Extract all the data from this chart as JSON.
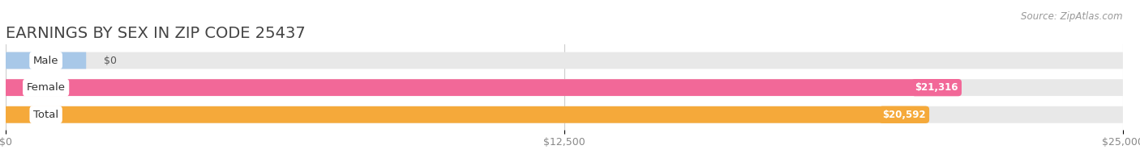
{
  "title": "EARNINGS BY SEX IN ZIP CODE 25437",
  "source": "Source: ZipAtlas.com",
  "categories": [
    "Male",
    "Female",
    "Total"
  ],
  "values": [
    0,
    21316,
    20592
  ],
  "bar_colors": [
    "#a8c8e8",
    "#f26898",
    "#f5a93a"
  ],
  "bar_bg_color": "#e8e8e8",
  "xlim": [
    0,
    25000
  ],
  "xticks": [
    0,
    12500,
    25000
  ],
  "xtick_labels": [
    "$0",
    "$12,500",
    "$25,000"
  ],
  "value_labels": [
    "$0",
    "$21,316",
    "$20,592"
  ],
  "background_color": "#ffffff",
  "title_fontsize": 14,
  "bar_height": 0.62,
  "fig_width": 14.06,
  "fig_height": 1.96,
  "label_stub": 1800
}
